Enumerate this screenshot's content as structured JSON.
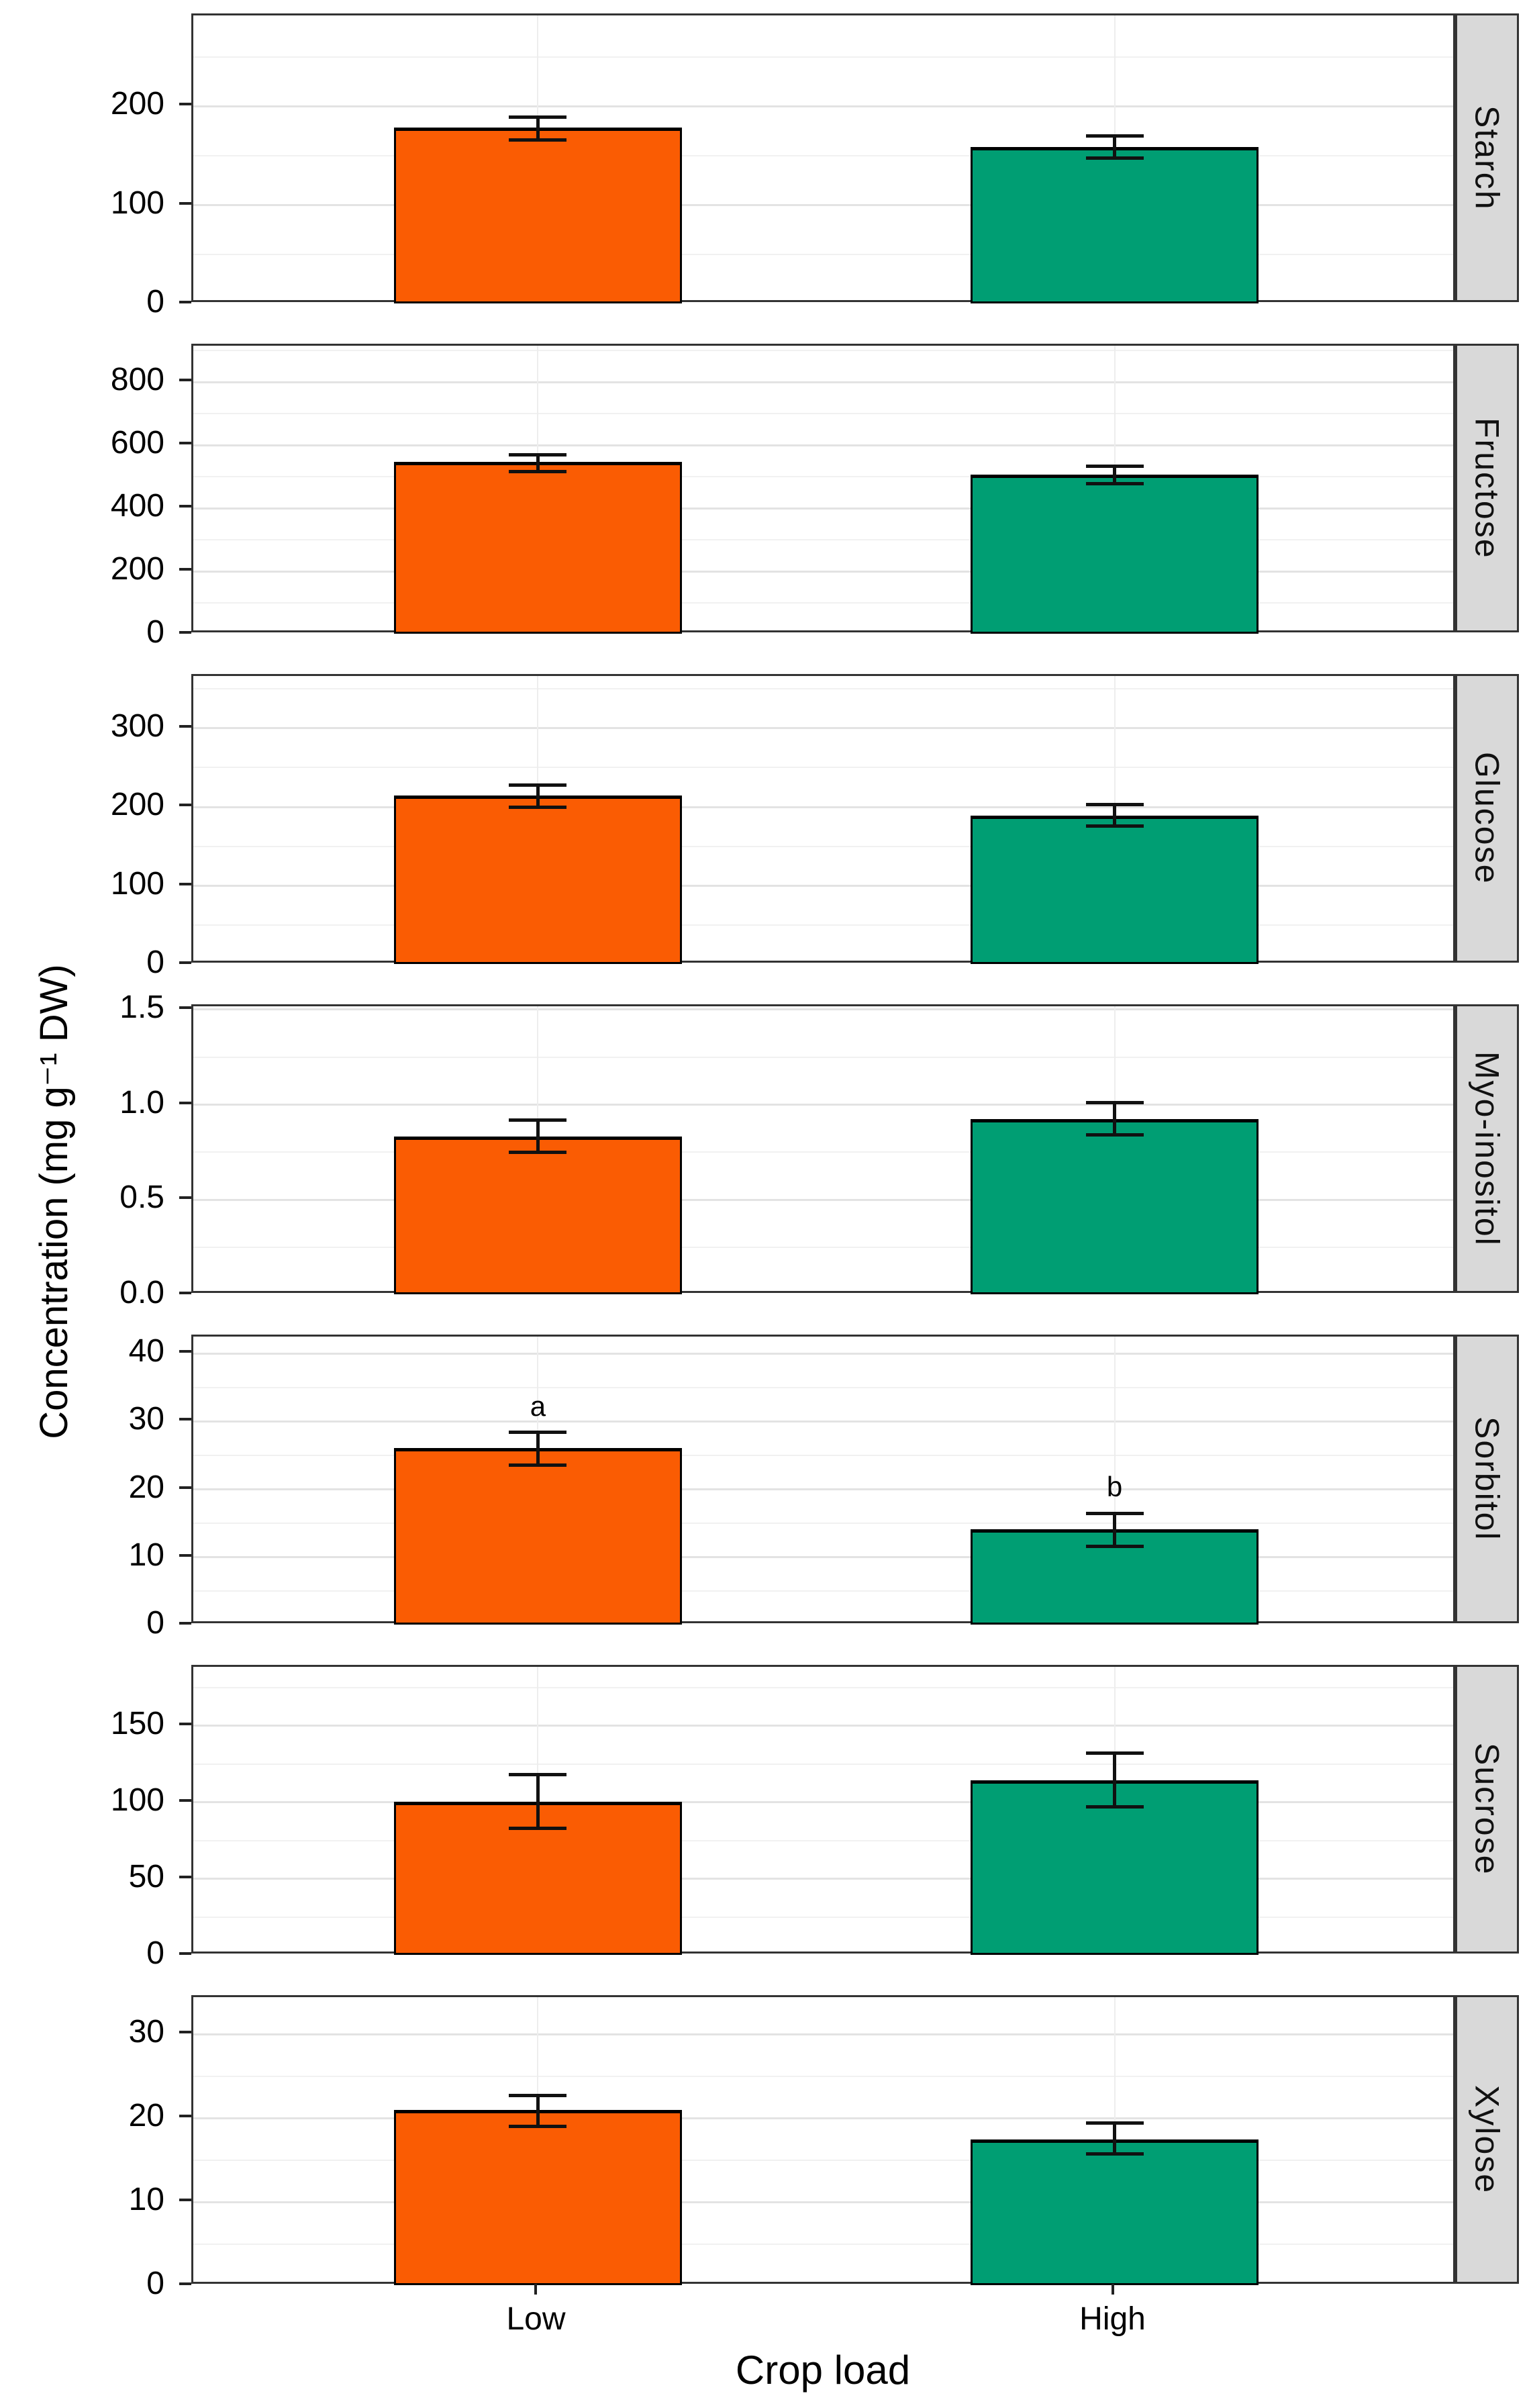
{
  "chart_data": {
    "type": "bar",
    "title": "",
    "xlabel": "Crop load",
    "ylabel": "Concentration (mg g⁻¹ DW)",
    "categories": [
      "Low",
      "High"
    ],
    "category_colors": {
      "Low": "#fa5c03",
      "High": "#009e73"
    },
    "legend_position": "none",
    "grid": "on",
    "error_bars": "mean ± error shown as black whiskers",
    "facets": [
      {
        "label": "Starch",
        "ylim": [
          0,
          292
        ],
        "ticks": [
          0,
          100,
          200
        ],
        "tick_labels": [
          "0",
          "100",
          "200"
        ],
        "minor_step": 50,
        "series": [
          {
            "category": "Low",
            "value": 178,
            "err_low": 166,
            "err_high": 189,
            "letter": ""
          },
          {
            "category": "High",
            "value": 158,
            "err_low": 148,
            "err_high": 170,
            "letter": ""
          }
        ]
      },
      {
        "label": "Fructose",
        "ylim": [
          0,
          915
        ],
        "ticks": [
          0,
          200,
          400,
          600,
          800
        ],
        "tick_labels": [
          "0",
          "200",
          "400",
          "600",
          "800"
        ],
        "minor_step": 100,
        "series": [
          {
            "category": "Low",
            "value": 545,
            "err_low": 515,
            "err_high": 570,
            "letter": ""
          },
          {
            "category": "High",
            "value": 505,
            "err_low": 478,
            "err_high": 533,
            "letter": ""
          }
        ]
      },
      {
        "label": "Glucose",
        "ylim": [
          0,
          366
        ],
        "ticks": [
          0,
          100,
          200,
          300
        ],
        "tick_labels": [
          "0",
          "100",
          "200",
          "300"
        ],
        "minor_step": 50,
        "series": [
          {
            "category": "Low",
            "value": 214,
            "err_low": 200,
            "err_high": 228,
            "letter": ""
          },
          {
            "category": "High",
            "value": 188,
            "err_low": 176,
            "err_high": 203,
            "letter": ""
          }
        ]
      },
      {
        "label": "Myo-inositol",
        "ylim": [
          0,
          1.517
        ],
        "ticks": [
          0,
          0.5,
          1.0,
          1.5
        ],
        "tick_labels": [
          "0.0",
          "0.5",
          "1.0",
          "1.5"
        ],
        "minor_step": 0.25,
        "series": [
          {
            "category": "Low",
            "value": 0.83,
            "err_low": 0.75,
            "err_high": 0.92,
            "letter": ""
          },
          {
            "category": "High",
            "value": 0.92,
            "err_low": 0.84,
            "err_high": 1.01,
            "letter": ""
          }
        ]
      },
      {
        "label": "Sorbitol",
        "ylim": [
          0,
          42.5
        ],
        "ticks": [
          0,
          10,
          20,
          30,
          40
        ],
        "tick_labels": [
          "0",
          "10",
          "20",
          "30",
          "40"
        ],
        "minor_step": 5,
        "series": [
          {
            "category": "Low",
            "value": 26.0,
            "err_low": 23.6,
            "err_high": 28.4,
            "letter": "a"
          },
          {
            "category": "High",
            "value": 14.0,
            "err_low": 11.6,
            "err_high": 16.5,
            "letter": "b"
          }
        ]
      },
      {
        "label": "Sucrose",
        "ylim": [
          0,
          188.5
        ],
        "ticks": [
          0,
          50,
          100,
          150
        ],
        "tick_labels": [
          "0",
          "50",
          "100",
          "150"
        ],
        "minor_step": 25,
        "series": [
          {
            "category": "Low",
            "value": 100,
            "err_low": 83,
            "err_high": 118,
            "letter": ""
          },
          {
            "category": "High",
            "value": 114,
            "err_low": 97,
            "err_high": 132,
            "letter": ""
          }
        ]
      },
      {
        "label": "Xylose",
        "ylim": [
          0,
          34.4
        ],
        "ticks": [
          0,
          10,
          20,
          30
        ],
        "tick_labels": [
          "0",
          "10",
          "20",
          "30"
        ],
        "minor_step": 5,
        "series": [
          {
            "category": "Low",
            "value": 20.9,
            "err_low": 19.0,
            "err_high": 22.7,
            "letter": ""
          },
          {
            "category": "High",
            "value": 17.4,
            "err_low": 15.7,
            "err_high": 19.4,
            "letter": ""
          }
        ]
      }
    ]
  }
}
